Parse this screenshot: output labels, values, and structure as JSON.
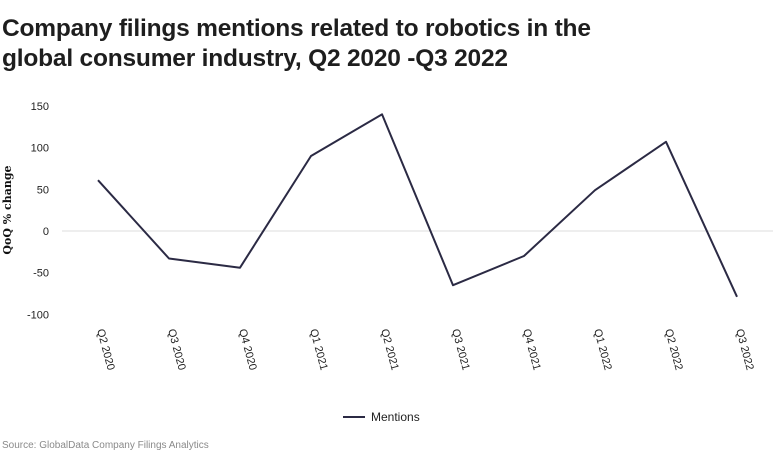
{
  "title_line1": "Company filings mentions related to robotics in the",
  "title_line2": "global consumer industry, Q2 2020 -Q3 2022",
  "source": "Source: GlobalData Company Filings Analytics",
  "colors": {
    "line": "#2b2a44",
    "zero_line": "#dcdcdc"
  },
  "chart_data": {
    "type": "line",
    "title": "Company filings mentions related to robotics in the global consumer industry, Q2 2020 -Q3 2022",
    "xlabel": "",
    "ylabel": "QoQ % change",
    "categories": [
      "Q2 2020",
      "Q3 2020",
      "Q4 2020",
      "Q1 2021",
      "Q2 2021",
      "Q3 2021",
      "Q4 2021",
      "Q1 2022",
      "Q2 2022",
      "Q3 2022"
    ],
    "series": [
      {
        "name": "Mentions",
        "values": [
          61,
          -33,
          -44,
          90,
          140,
          -65,
          -30,
          49,
          107,
          -79
        ]
      }
    ],
    "y_ticks": [
      150,
      100,
      50,
      0,
      -50,
      -100
    ],
    "ylim": [
      -100,
      150
    ],
    "grid": "zero-line only",
    "legend": "bottom-center"
  }
}
